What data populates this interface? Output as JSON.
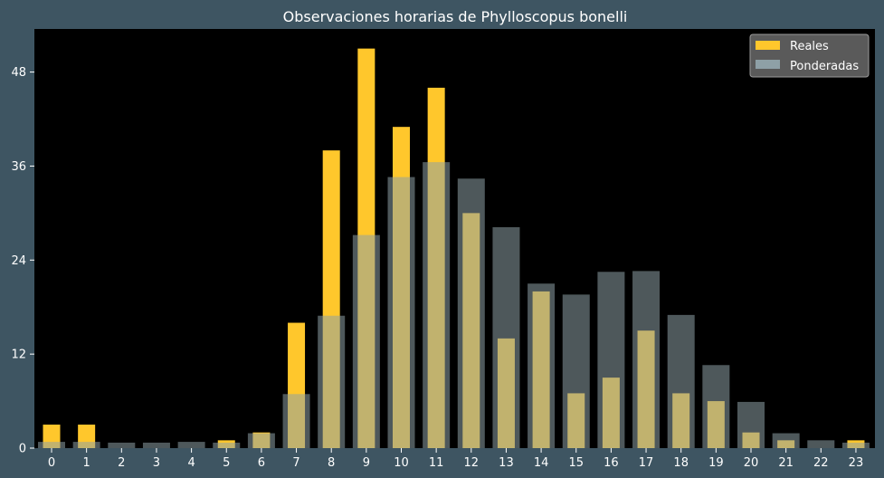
{
  "chart_data": {
    "type": "bar",
    "title": "Observaciones horarias de Phylloscopus bonelli",
    "xlabel": "",
    "ylabel": "",
    "categories": [
      "0",
      "1",
      "2",
      "3",
      "4",
      "5",
      "6",
      "7",
      "8",
      "9",
      "10",
      "11",
      "12",
      "13",
      "14",
      "15",
      "16",
      "17",
      "18",
      "19",
      "20",
      "21",
      "22",
      "23"
    ],
    "ylim": [
      0,
      53.5
    ],
    "yticks": [
      0,
      12,
      24,
      36,
      48
    ],
    "grid": false,
    "legend_position": "top-right",
    "series": [
      {
        "name": "Reales",
        "color": "#ffc72c",
        "values": [
          3,
          3,
          0,
          0,
          0,
          1,
          2,
          16,
          38,
          51,
          41,
          46,
          30,
          14,
          20,
          7,
          9,
          15,
          7,
          6,
          2,
          1,
          0,
          1
        ]
      },
      {
        "name": "Ponderadas",
        "color": "#8ea0a6",
        "opacity": 0.55,
        "values": [
          0.8,
          0.8,
          0.7,
          0.7,
          0.8,
          0.7,
          1.9,
          6.9,
          16.9,
          27.2,
          34.6,
          36.5,
          34.4,
          28.2,
          21.0,
          19.6,
          22.5,
          22.6,
          17.0,
          10.6,
          5.9,
          1.9,
          1.0,
          0.7
        ]
      }
    ]
  }
}
